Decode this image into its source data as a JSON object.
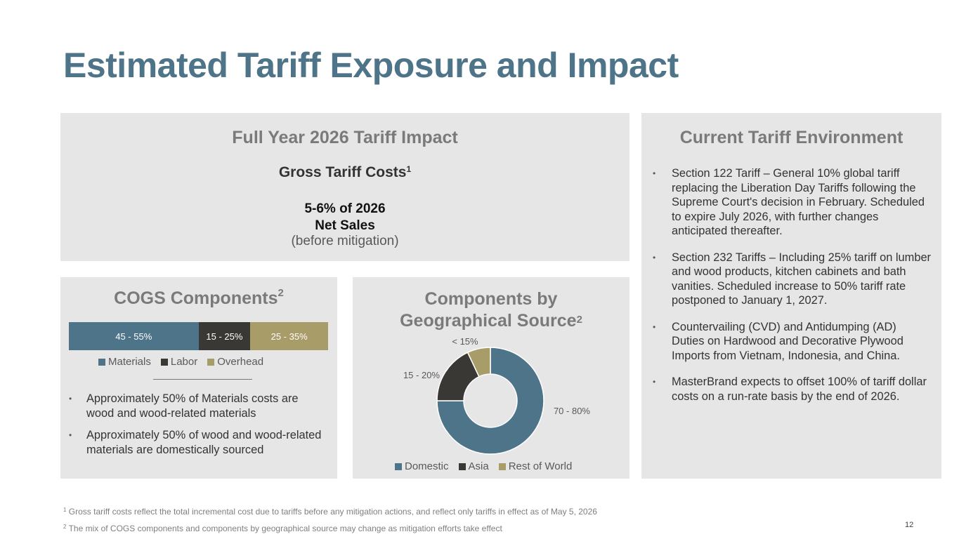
{
  "title": "Estimated Tariff Exposure and Impact",
  "impact": {
    "heading": "Full Year 2026 Tariff Impact",
    "subheading": "Gross Tariff Costs",
    "subheading_sup": "1",
    "value_line1": "5-6% of 2026",
    "value_line2": "Net Sales",
    "note": "(before mitigation)"
  },
  "environment": {
    "heading": "Current Tariff Environment",
    "bullets": [
      "Section 122 Tariff – General 10% global tariff replacing the Liberation Day Tariffs following the Supreme Court's decision in February. Scheduled to expire July 2026, with further changes anticipated thereafter.",
      "Section 232 Tariffs – Including 25% tariff on lumber and wood products, kitchen cabinets and bath vanities. Scheduled increase to 50% tariff rate postponed to January 1, 2027.",
      "Countervailing (CVD) and Antidumping (AD) Duties on Hardwood and Decorative Plywood Imports from Vietnam, Indonesia, and China.",
      "MasterBrand expects to offset 100% of tariff dollar costs on a run-rate basis by the end of 2026."
    ]
  },
  "cogs": {
    "heading": "COGS Components",
    "heading_sup": "2",
    "bullets": [
      "Approximately 50% of Materials costs are wood and wood-related materials",
      "Approximately 50% of wood and wood-related materials are domestically sourced"
    ]
  },
  "geo": {
    "heading_line1": "Components by",
    "heading_line2": "Geographical Source",
    "heading_sup": "2"
  },
  "chart_data": [
    {
      "type": "bar",
      "stacked": true,
      "orientation": "horizontal",
      "title": "COGS Components",
      "series": [
        {
          "name": "Materials",
          "label": "45 - 55%",
          "value": 50,
          "color": "#4e7489"
        },
        {
          "name": "Labor",
          "label": "15 - 25%",
          "value": 20,
          "color": "#3a3835"
        },
        {
          "name": "Overhead",
          "label": "25 - 35%",
          "value": 30,
          "color": "#a89c68"
        }
      ],
      "legend": "bottom"
    },
    {
      "type": "pie",
      "donut": true,
      "title": "Components by Geographical Source",
      "slices": [
        {
          "name": "Domestic",
          "label": "70 - 80%",
          "value": 75,
          "color": "#4e7489"
        },
        {
          "name": "Asia",
          "label": "15 - 20%",
          "value": 18,
          "color": "#3a3835"
        },
        {
          "name": "Rest of World",
          "label": "< 15%",
          "value": 7,
          "color": "#a89c68"
        }
      ],
      "legend": "bottom"
    }
  ],
  "footnotes": {
    "fn1_mark": "1",
    "fn1": "Gross tariff costs reflect the total incremental cost due to tariffs before any mitigation actions, and reflect only tariffs in effect as of May 5, 2026",
    "fn2_mark": "2",
    "fn2": "The mix of COGS components and components by geographical source may change as mitigation efforts take effect"
  },
  "page_number": "12",
  "bullet_char": "•"
}
